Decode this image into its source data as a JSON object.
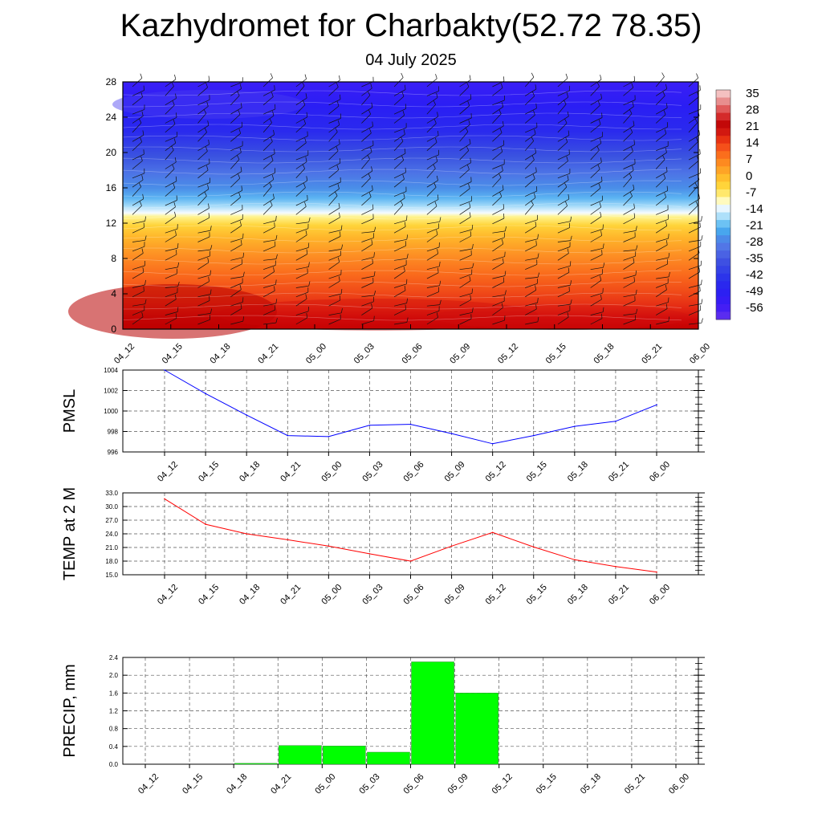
{
  "header": {
    "title": "Kazhydromet for Charbakty(52.72 78.35)",
    "subtitle": "04 July 2025"
  },
  "colors": {
    "pmsl_line": "#0000ff",
    "temp_line": "#ff0000",
    "precip_bar": "#00ff00",
    "precip_bar_edge": "#3a8c3a"
  },
  "chart_data": [
    {
      "type": "heatmap",
      "x_ticks": [
        "04_12",
        "04_15",
        "04_18",
        "04_21",
        "05_00",
        "05_03",
        "05_06",
        "05_09",
        "05_12",
        "05_15",
        "05_18",
        "05_21",
        "06_00"
      ],
      "y_ticks": [
        0,
        4,
        8,
        12,
        16,
        20,
        24,
        28
      ],
      "ylim": [
        0,
        28
      ],
      "colorbar_labels": [
        "35",
        "28",
        "21",
        "14",
        "7",
        "0",
        "-7",
        "-14",
        "-21",
        "-28",
        "-35",
        "-42",
        "-49",
        "-56"
      ],
      "colorbar_range": [
        -63,
        42
      ],
      "overlay": "wind barbs"
    },
    {
      "type": "line",
      "ylabel": "PMSL",
      "categories": [
        "04_12",
        "04_15",
        "04_18",
        "04_21",
        "05_00",
        "05_03",
        "05_06",
        "05_09",
        "05_12",
        "05_15",
        "05_18",
        "05_21",
        "06_00"
      ],
      "values": [
        1004.0,
        1001.7,
        999.6,
        997.6,
        997.5,
        998.6,
        998.7,
        997.8,
        996.8,
        997.6,
        998.5,
        999.0,
        1000.6
      ],
      "y_ticks": [
        "996",
        "998",
        "1000",
        "1002",
        "1004"
      ],
      "ylim": [
        996,
        1004
      ],
      "grid": true
    },
    {
      "type": "line",
      "ylabel": "TEMP at 2 M",
      "categories": [
        "04_12",
        "04_15",
        "04_18",
        "04_21",
        "05_00",
        "05_03",
        "05_06",
        "05_09",
        "05_12",
        "05_15",
        "05_18",
        "05_21",
        "06_00"
      ],
      "values": [
        31.7,
        26.1,
        24.0,
        22.7,
        21.3,
        19.6,
        18.0,
        21.3,
        24.3,
        21.1,
        18.3,
        16.8,
        15.6
      ],
      "y_ticks": [
        "15.0",
        "18.0",
        "21.0",
        "24.0",
        "27.0",
        "30.0",
        "33.0"
      ],
      "ylim": [
        15,
        33
      ],
      "grid": true
    },
    {
      "type": "bar",
      "ylabel": "PRECIP, mm",
      "categories": [
        "04_12",
        "04_15",
        "04_18",
        "04_21",
        "05_00",
        "05_03",
        "05_06",
        "05_09",
        "05_12",
        "05_15",
        "05_18",
        "05_21",
        "06_00"
      ],
      "bars": [
        {
          "start": "04_18",
          "end": "04_21",
          "value": 0.02
        },
        {
          "start": "04_21",
          "end": "05_00",
          "value": 0.42
        },
        {
          "start": "05_00",
          "end": "05_03",
          "value": 0.41
        },
        {
          "start": "05_03",
          "end": "05_06",
          "value": 0.27
        },
        {
          "start": "05_06",
          "end": "05_09",
          "value": 2.3
        },
        {
          "start": "05_09",
          "end": "05_12",
          "value": 1.6
        }
      ],
      "y_ticks": [
        "0.0",
        "0.4",
        "0.8",
        "1.2",
        "1.6",
        "2.0",
        "2.4"
      ],
      "ylim": [
        0,
        2.4
      ],
      "grid": true
    }
  ]
}
